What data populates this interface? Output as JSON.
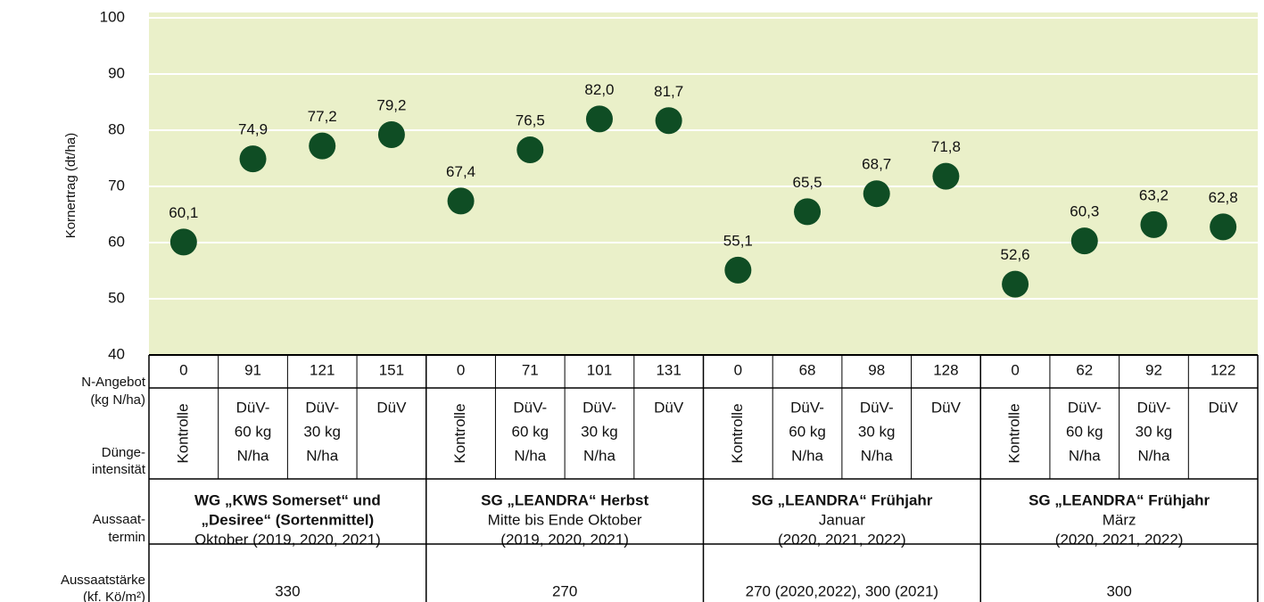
{
  "chart_data": {
    "type": "dot",
    "y_label": "Kornertrag (dt/ha)",
    "ylim": [
      40,
      100
    ],
    "yticks": [
      40,
      50,
      60,
      70,
      80,
      90,
      100
    ],
    "grid": true,
    "color": "#0f4d24",
    "background": "#eaf0c9",
    "values": [
      60.1,
      74.9,
      77.2,
      79.2,
      67.4,
      76.5,
      82.0,
      81.7,
      55.1,
      65.5,
      68.7,
      71.8,
      52.6,
      60.3,
      63.2,
      62.8
    ],
    "value_labels": [
      "60,1",
      "74,9",
      "77,2",
      "79,2",
      "67,4",
      "76,5",
      "82,0",
      "81,7",
      "55,1",
      "65,5",
      "68,7",
      "71,8",
      "52,6",
      "60,3",
      "63,2",
      "62,8"
    ],
    "categories": [
      0,
      91,
      121,
      151,
      0,
      71,
      101,
      131,
      0,
      68,
      98,
      128,
      0,
      62,
      92,
      122
    ]
  },
  "table": {
    "row_labels": {
      "n_angebot": [
        "N-Angebot",
        "(kg N/ha)"
      ],
      "duengeintensitaet": [
        "Dünge-",
        "intensität"
      ],
      "aussaattermin": [
        "Aussaat-",
        "termin"
      ],
      "aussaatstaerke": [
        "Aussaatstärke",
        "(kf. Kö/m²)"
      ]
    },
    "duengeintensitaet": [
      [
        "Kontrolle"
      ],
      [
        "DüV-",
        "60 kg",
        "N/ha"
      ],
      [
        "DüV-",
        "30 kg",
        "N/ha"
      ],
      [
        "DüV"
      ],
      [
        "Kontrolle"
      ],
      [
        "DüV-",
        "60 kg",
        "N/ha"
      ],
      [
        "DüV-",
        "30 kg",
        "N/ha"
      ],
      [
        "DüV"
      ],
      [
        "Kontrolle"
      ],
      [
        "DüV-",
        "60 kg",
        "N/ha"
      ],
      [
        "DüV-",
        "30 kg",
        "N/ha"
      ],
      [
        "DüV"
      ],
      [
        "Kontrolle"
      ],
      [
        "DüV-",
        "60 kg",
        "N/ha"
      ],
      [
        "DüV-",
        "30 kg",
        "N/ha"
      ],
      [
        "DüV"
      ]
    ],
    "groups": [
      {
        "title": [
          "WG „KWS Somerset“ und",
          "„Desiree“ (Sortenmittel)"
        ],
        "sub": [
          "Oktober (2019, 2020, 2021)"
        ],
        "staerke": "330"
      },
      {
        "title": [
          "SG „LEANDRA“ Herbst"
        ],
        "sub": [
          "Mitte bis Ende Oktober",
          "(2019, 2020, 2021)"
        ],
        "staerke": "270"
      },
      {
        "title": [
          "SG „LEANDRA“ Frühjahr"
        ],
        "sub": [
          "Januar",
          "(2020, 2021, 2022)"
        ],
        "staerke": "270 (2020,2022), 300 (2021)"
      },
      {
        "title": [
          "SG „LEANDRA“ Frühjahr"
        ],
        "sub": [
          "März",
          "(2020, 2021, 2022)"
        ],
        "staerke": "300"
      }
    ]
  }
}
